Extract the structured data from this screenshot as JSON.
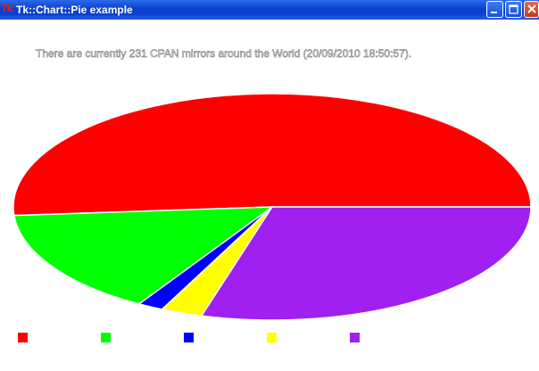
{
  "window": {
    "title": "Tk::Chart::Pie example",
    "app_icon": "tk-feather-icon"
  },
  "chart_data": {
    "type": "pie",
    "title": "There are currently 231 CPAN mirrors around the World (20/09/2010 18:50:57).",
    "values": [
      51.2,
      15.2,
      1.6,
      2.6,
      29.4
    ],
    "unit": "percent",
    "colors": [
      "#ff0000",
      "#00ff00",
      "#0000ff",
      "#ffff00",
      "#a020f0"
    ],
    "legend": [
      {
        "color": "#ff0000"
      },
      {
        "color": "#00ff00"
      },
      {
        "color": "#0000ff"
      },
      {
        "color": "#ffff00"
      },
      {
        "color": "#a020f0"
      }
    ],
    "legend_placement": "bottom"
  }
}
